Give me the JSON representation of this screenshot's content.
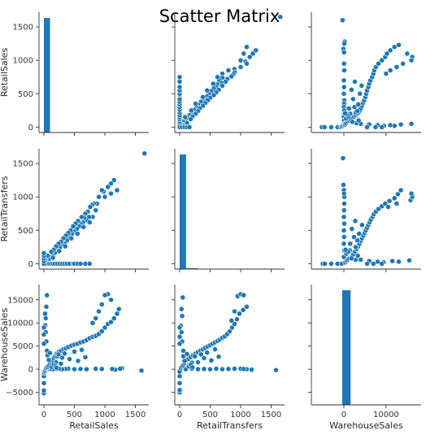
{
  "chart_data": {
    "type": "scatter",
    "title": "Scatter Matrix",
    "variables": [
      "RetailSales",
      "RetailTransfers",
      "WarehouseSales"
    ],
    "grid": false,
    "colors": {
      "marker": "#1f77b4",
      "marker_edge": "#ffffff",
      "axis": "#333333"
    },
    "axes": {
      "RetailSales": {
        "range": [
          -80,
          1720
        ],
        "ticks": [
          0,
          500,
          1000,
          1500
        ]
      },
      "RetailTransfers": {
        "range": [
          -80,
          1720
        ],
        "ticks": [
          0,
          500,
          1000,
          1500
        ]
      },
      "WarehouseSales": {
        "range": [
          -7700,
          18300
        ],
        "ticks": [
          -5000,
          0,
          5000,
          10000,
          15000
        ],
        "x_ticks": [
          0,
          10000
        ]
      }
    },
    "histograms": {
      "RetailSales": {
        "bins": [
          [
            0,
            100,
            1650
          ]
        ]
      },
      "RetailTransfers": {
        "bins": [
          [
            0,
            105,
            1620
          ],
          [
            105,
            300,
            14
          ]
        ]
      },
      "WarehouseSales": {
        "bins": [
          [
            -400,
            1600,
            1650
          ]
        ]
      }
    },
    "pairs": {
      "RetailSales_vs_RetailTransfers": [
        [
          1650,
          1650
        ],
        [
          1200,
          1100
        ],
        [
          1150,
          1250
        ],
        [
          1100,
          1200
        ],
        [
          1100,
          1050
        ],
        [
          1050,
          1150
        ],
        [
          1000,
          1000
        ],
        [
          980,
          1080
        ],
        [
          950,
          1100
        ],
        [
          900,
          1000
        ],
        [
          870,
          900
        ],
        [
          850,
          800
        ],
        [
          820,
          900
        ],
        [
          800,
          700
        ],
        [
          790,
          880
        ],
        [
          760,
          850
        ],
        [
          740,
          700
        ],
        [
          720,
          780
        ],
        [
          700,
          650
        ],
        [
          680,
          750
        ],
        [
          660,
          690
        ],
        [
          640,
          620
        ],
        [
          620,
          700
        ],
        [
          600,
          600
        ],
        [
          580,
          560
        ],
        [
          560,
          640
        ],
        [
          540,
          520
        ],
        [
          520,
          600
        ],
        [
          500,
          480
        ],
        [
          480,
          560
        ],
        [
          460,
          450
        ],
        [
          440,
          500
        ],
        [
          420,
          400
        ],
        [
          400,
          460
        ],
        [
          380,
          350
        ],
        [
          360,
          420
        ],
        [
          340,
          300
        ],
        [
          320,
          380
        ],
        [
          300,
          280
        ],
        [
          280,
          330
        ],
        [
          260,
          240
        ],
        [
          240,
          300
        ],
        [
          220,
          200
        ],
        [
          200,
          260
        ],
        [
          180,
          160
        ],
        [
          160,
          210
        ],
        [
          140,
          120
        ],
        [
          120,
          180
        ],
        [
          100,
          100
        ],
        [
          80,
          60
        ],
        [
          60,
          120
        ],
        [
          40,
          40
        ],
        [
          20,
          60
        ],
        [
          10,
          20
        ],
        [
          150,
          90
        ],
        [
          250,
          190
        ],
        [
          350,
          260
        ],
        [
          450,
          380
        ],
        [
          550,
          450
        ],
        [
          650,
          550
        ],
        [
          750,
          620
        ],
        [
          30,
          0
        ],
        [
          60,
          0
        ],
        [
          90,
          0
        ],
        [
          120,
          0
        ],
        [
          150,
          0
        ],
        [
          180,
          0
        ],
        [
          220,
          0
        ],
        [
          260,
          0
        ],
        [
          300,
          0
        ],
        [
          340,
          0
        ],
        [
          380,
          0
        ],
        [
          420,
          0
        ],
        [
          480,
          0
        ],
        [
          500,
          0
        ],
        [
          550,
          0
        ],
        [
          600,
          0
        ],
        [
          680,
          0
        ],
        [
          750,
          0
        ],
        [
          0,
          0
        ],
        [
          0,
          40
        ],
        [
          0,
          80
        ],
        [
          0,
          120
        ],
        [
          0,
          160
        ]
      ],
      "RetailSales_vs_WarehouseSales": [
        [
          1600,
          -300
        ],
        [
          1170,
          -100
        ],
        [
          1120,
          50
        ],
        [
          1280,
          200
        ],
        [
          1250,
          100
        ],
        [
          950,
          50
        ],
        [
          850,
          100
        ],
        [
          700,
          0
        ],
        [
          600,
          50
        ],
        [
          500,
          0
        ],
        [
          400,
          100
        ],
        [
          350,
          50
        ],
        [
          300,
          0
        ],
        [
          250,
          100
        ],
        [
          200,
          50
        ],
        [
          150,
          0
        ],
        [
          100,
          50
        ],
        [
          50,
          0
        ],
        [
          0,
          -5200
        ],
        [
          0,
          -4600
        ],
        [
          0,
          -3000
        ],
        [
          0,
          -1500
        ],
        [
          0,
          -800
        ],
        [
          10,
          -500
        ],
        [
          20,
          -300
        ],
        [
          30,
          100
        ],
        [
          40,
          300
        ],
        [
          60,
          500
        ],
        [
          80,
          800
        ],
        [
          100,
          1200
        ],
        [
          120,
          1600
        ],
        [
          140,
          2000
        ],
        [
          160,
          2400
        ],
        [
          180,
          2800
        ],
        [
          200,
          3200
        ],
        [
          220,
          3500
        ],
        [
          250,
          3800
        ],
        [
          280,
          4000
        ],
        [
          320,
          4300
        ],
        [
          360,
          4500
        ],
        [
          400,
          4800
        ],
        [
          450,
          5100
        ],
        [
          500,
          5300
        ],
        [
          550,
          5500
        ],
        [
          600,
          5800
        ],
        [
          650,
          6000
        ],
        [
          700,
          6300
        ],
        [
          750,
          6700
        ],
        [
          800,
          7000
        ],
        [
          850,
          7200
        ],
        [
          900,
          7600
        ],
        [
          950,
          8200
        ],
        [
          1000,
          9000
        ],
        [
          1050,
          9800
        ],
        [
          1100,
          10200
        ],
        [
          1150,
          11000
        ],
        [
          1200,
          12000
        ],
        [
          1230,
          13000
        ],
        [
          1100,
          15000
        ],
        [
          1050,
          16200
        ],
        [
          1000,
          16000
        ],
        [
          950,
          14000
        ],
        [
          900,
          12500
        ],
        [
          850,
          11000
        ],
        [
          800,
          10000
        ],
        [
          200,
          1500
        ],
        [
          220,
          2800
        ],
        [
          240,
          3200
        ],
        [
          280,
          1200
        ],
        [
          300,
          2500
        ],
        [
          340,
          3400
        ],
        [
          420,
          2200
        ],
        [
          500,
          3800
        ],
        [
          560,
          1800
        ],
        [
          620,
          4200
        ],
        [
          680,
          2600
        ],
        [
          50,
          4000
        ],
        [
          40,
          6000
        ],
        [
          30,
          8000
        ],
        [
          20,
          9500
        ],
        [
          30,
          11000
        ],
        [
          20,
          12000
        ],
        [
          40,
          13500
        ],
        [
          50,
          16000
        ],
        [
          60,
          3000
        ],
        [
          80,
          2000
        ],
        [
          100,
          3500
        ],
        [
          130,
          500
        ],
        [
          160,
          1000
        ],
        [
          190,
          700
        ],
        [
          210,
          300
        ],
        [
          0,
          9000
        ],
        [
          0,
          7500
        ],
        [
          0,
          5500
        ]
      ],
      "RetailTransfers_vs_WarehouseSales": [
        [
          1580,
          -200
        ],
        [
          1180,
          -100
        ],
        [
          1000,
          100
        ],
        [
          1100,
          0
        ],
        [
          1050,
          50
        ],
        [
          900,
          100
        ],
        [
          800,
          50
        ],
        [
          700,
          0
        ],
        [
          600,
          100
        ],
        [
          500,
          0
        ],
        [
          400,
          50
        ],
        [
          300,
          0
        ],
        [
          200,
          100
        ],
        [
          100,
          0
        ],
        [
          0,
          -5000
        ],
        [
          0,
          -4500
        ],
        [
          0,
          -3000
        ],
        [
          0,
          -1500
        ],
        [
          0,
          -500
        ],
        [
          20,
          300
        ],
        [
          40,
          600
        ],
        [
          60,
          900
        ],
        [
          80,
          1300
        ],
        [
          100,
          1800
        ],
        [
          140,
          2200
        ],
        [
          180,
          2600
        ],
        [
          220,
          3000
        ],
        [
          260,
          3400
        ],
        [
          300,
          3700
        ],
        [
          340,
          4000
        ],
        [
          380,
          4300
        ],
        [
          420,
          4600
        ],
        [
          460,
          4900
        ],
        [
          500,
          5200
        ],
        [
          540,
          5500
        ],
        [
          580,
          5800
        ],
        [
          620,
          6100
        ],
        [
          660,
          6400
        ],
        [
          700,
          6800
        ],
        [
          740,
          7100
        ],
        [
          780,
          7600
        ],
        [
          820,
          8200
        ],
        [
          860,
          9000
        ],
        [
          900,
          9800
        ],
        [
          940,
          10800
        ],
        [
          980,
          12000
        ],
        [
          1040,
          12800
        ],
        [
          1100,
          13500
        ],
        [
          950,
          15800
        ],
        [
          1000,
          16200
        ],
        [
          1050,
          16000
        ],
        [
          900,
          12500
        ],
        [
          850,
          10500
        ],
        [
          200,
          1400
        ],
        [
          250,
          2800
        ],
        [
          300,
          1500
        ],
        [
          350,
          3200
        ],
        [
          400,
          2400
        ],
        [
          450,
          3600
        ],
        [
          520,
          1900
        ],
        [
          580,
          4300
        ],
        [
          640,
          2700
        ],
        [
          60,
          4000
        ],
        [
          40,
          6000
        ],
        [
          30,
          8000
        ],
        [
          20,
          9400
        ],
        [
          40,
          11500
        ],
        [
          30,
          13000
        ],
        [
          50,
          15500
        ],
        [
          60,
          2800
        ],
        [
          80,
          1800
        ],
        [
          120,
          3300
        ],
        [
          150,
          600
        ],
        [
          180,
          1000
        ],
        [
          210,
          400
        ],
        [
          0,
          9000
        ],
        [
          0,
          7000
        ],
        [
          0,
          5500
        ]
      ]
    }
  }
}
